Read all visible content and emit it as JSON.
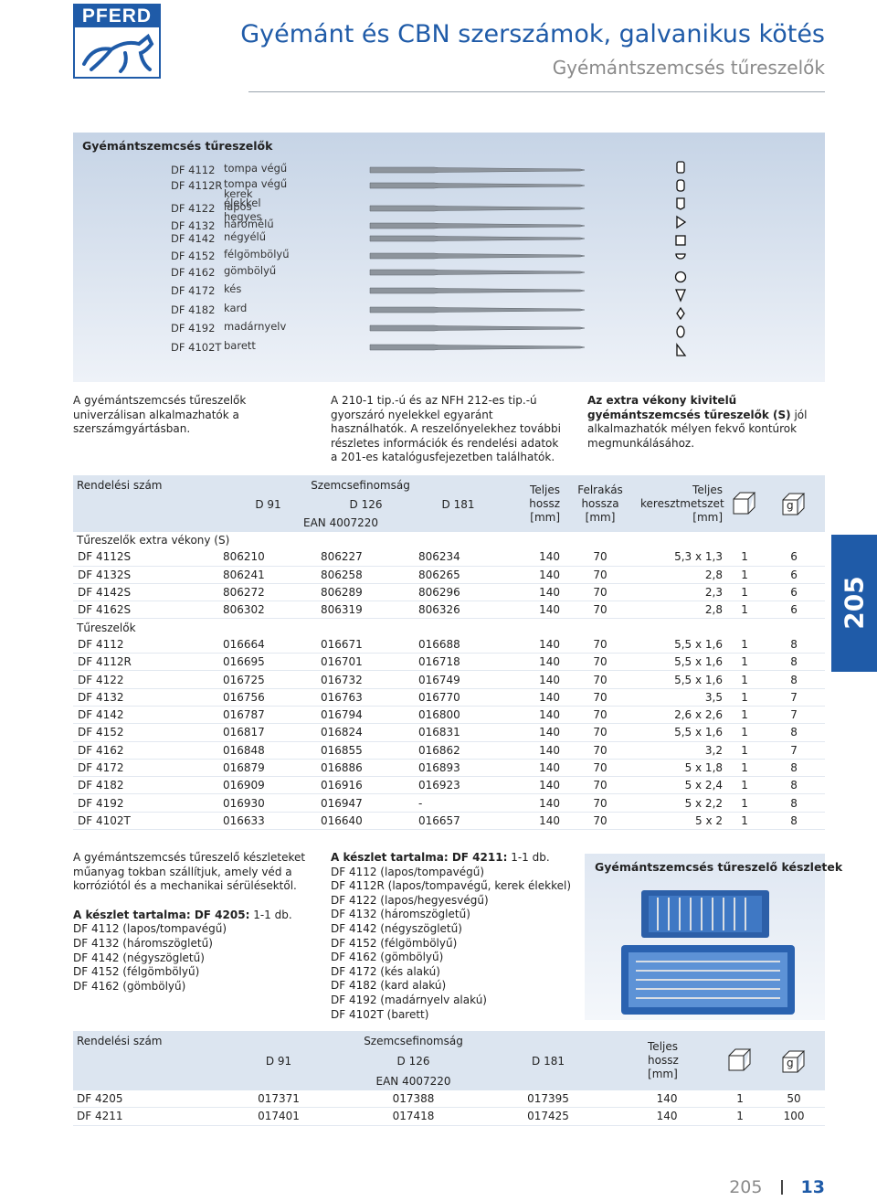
{
  "header": {
    "logo": "PFERD",
    "title": "Gyémánt és CBN szerszámok, galvanikus kötés",
    "subtitle": "Gyémántszemcsés tűreszelők"
  },
  "panel": {
    "title": "Gyémántszemcsés tűreszelők",
    "items": [
      {
        "code": "DF 4112",
        "name": "tompa végű"
      },
      {
        "code": "DF 4112R",
        "name": "tompa végű kerek élekkel"
      },
      {
        "code": "DF 4122",
        "name": "lapos hegyes"
      },
      {
        "code": "DF 4132",
        "name": "háromélű"
      },
      {
        "code": "DF 4142",
        "name": "négyélű"
      },
      {
        "code": "DF 4152",
        "name": "félgömbölyű"
      },
      {
        "code": "DF 4162",
        "name": "gömbölyű"
      },
      {
        "code": "DF 4172",
        "name": "kés"
      },
      {
        "code": "DF 4182",
        "name": "kard"
      },
      {
        "code": "DF 4192",
        "name": "madárnyelv"
      },
      {
        "code": "DF 4102T",
        "name": "barett"
      }
    ]
  },
  "intro": {
    "col1": "A gyémántszemcsés tűreszelők univerzálisan alkalmazhatók a szerszámgyártásban.",
    "col2": "A 210-1 tip.-ú és az NFH 212-es tip.-ú gyorszáró nyelekkel egyaránt használhatók. A reszelőnyelekhez további részletes információk és rendelési adatok a 201-es katalógusfejezetben találhatók.",
    "col3_bold": "Az extra vékony kivitelű gyémántszemcsés tűreszelők (S)",
    "col3_text": " jól alkalmazhatók mélyen fekvő kontúrok megmunkálásához."
  },
  "table1": {
    "headers": {
      "code": "Rendelési szám",
      "grit": "Szemcsefinomság",
      "d91": "D 91",
      "d126": "D 126",
      "d181": "D 181",
      "ean": "EAN 4007220",
      "length": "Teljes hossz [mm]",
      "coating": "Felrakás hossza [mm]",
      "cross": "Teljes keresztmetszet [mm]",
      "g": "g"
    },
    "sections": [
      {
        "title": "Tűreszelők extra vékony (S)",
        "rows": [
          [
            "DF 4112S",
            "806210",
            "806227",
            "806234",
            "140",
            "70",
            "5,3 x 1,3",
            "1",
            "6"
          ],
          [
            "DF 4132S",
            "806241",
            "806258",
            "806265",
            "140",
            "70",
            "2,8",
            "1",
            "6"
          ],
          [
            "DF 4142S",
            "806272",
            "806289",
            "806296",
            "140",
            "70",
            "2,3",
            "1",
            "6"
          ],
          [
            "DF 4162S",
            "806302",
            "806319",
            "806326",
            "140",
            "70",
            "2,8",
            "1",
            "6"
          ]
        ]
      },
      {
        "title": "Tűreszelők",
        "rows": [
          [
            "DF 4112",
            "016664",
            "016671",
            "016688",
            "140",
            "70",
            "5,5 x 1,6",
            "1",
            "8"
          ],
          [
            "DF 4112R",
            "016695",
            "016701",
            "016718",
            "140",
            "70",
            "5,5 x 1,6",
            "1",
            "8"
          ],
          [
            "DF 4122",
            "016725",
            "016732",
            "016749",
            "140",
            "70",
            "5,5 x 1,6",
            "1",
            "8"
          ],
          [
            "DF 4132",
            "016756",
            "016763",
            "016770",
            "140",
            "70",
            "3,5",
            "1",
            "7"
          ],
          [
            "DF 4142",
            "016787",
            "016794",
            "016800",
            "140",
            "70",
            "2,6 x 2,6",
            "1",
            "7"
          ],
          [
            "DF 4152",
            "016817",
            "016824",
            "016831",
            "140",
            "70",
            "5,5 x 1,6",
            "1",
            "8"
          ],
          [
            "DF 4162",
            "016848",
            "016855",
            "016862",
            "140",
            "70",
            "3,2",
            "1",
            "7"
          ],
          [
            "DF 4172",
            "016879",
            "016886",
            "016893",
            "140",
            "70",
            "5 x 1,8",
            "1",
            "8"
          ],
          [
            "DF 4182",
            "016909",
            "016916",
            "016923",
            "140",
            "70",
            "5 x 2,4",
            "1",
            "8"
          ],
          [
            "DF 4192",
            "016930",
            "016947",
            "-",
            "140",
            "70",
            "5 x 2,2",
            "1",
            "8"
          ],
          [
            "DF 4102T",
            "016633",
            "016640",
            "016657",
            "140",
            "70",
            "5 x 2",
            "1",
            "8"
          ]
        ]
      }
    ]
  },
  "sets": {
    "desc": "A gyémántszemcsés tűreszelő készleteket műanyag tokban szállítjuk, amely véd a korróziótól és a mechanikai sérülésektől.",
    "kit1": {
      "label": "A készlet tartalma: DF 4205:",
      "qty": " 1-1 db.",
      "items": [
        "DF 4112 (lapos/tompavégű)",
        "DF 4132 (háromszögletű)",
        "DF 4142 (négyszögletű)",
        "DF 4152 (félgömbölyű)",
        "DF 4162 (gömbölyű)"
      ]
    },
    "kit2": {
      "label": "A készlet tartalma: DF 4211:",
      "qty": " 1-1 db.",
      "items": [
        "DF 4112 (lapos/tompavégű)",
        "DF 4112R (lapos/tompavégű, kerek élekkel)",
        "DF 4122 (lapos/hegyesvégű)",
        "DF 4132 (háromszögletű)",
        "DF 4142 (négyszögletű)",
        "DF 4152 (félgömbölyű)",
        "DF 4162 (gömbölyű)",
        "DF 4172 (kés alakú)",
        "DF 4182 (kard alakú)",
        "DF 4192 (madárnyelv alakú)",
        "DF 4102T (barett)"
      ]
    },
    "image_title": "Gyémántszemcsés tűreszelő készletek"
  },
  "table2": {
    "headers": {
      "code": "Rendelési szám",
      "grit": "Szemcsefinomság",
      "d91": "D 91",
      "d126": "D 126",
      "d181": "D 181",
      "ean": "EAN 4007220",
      "length": "Teljes hossz [mm]",
      "g": "g"
    },
    "rows": [
      [
        "DF 4205",
        "017371",
        "017388",
        "017395",
        "140",
        "1",
        "50"
      ],
      [
        "DF 4211",
        "017401",
        "017418",
        "017425",
        "140",
        "1",
        "100"
      ]
    ]
  },
  "side_tab": "205",
  "footer": {
    "chapter": "205",
    "page": "13"
  }
}
